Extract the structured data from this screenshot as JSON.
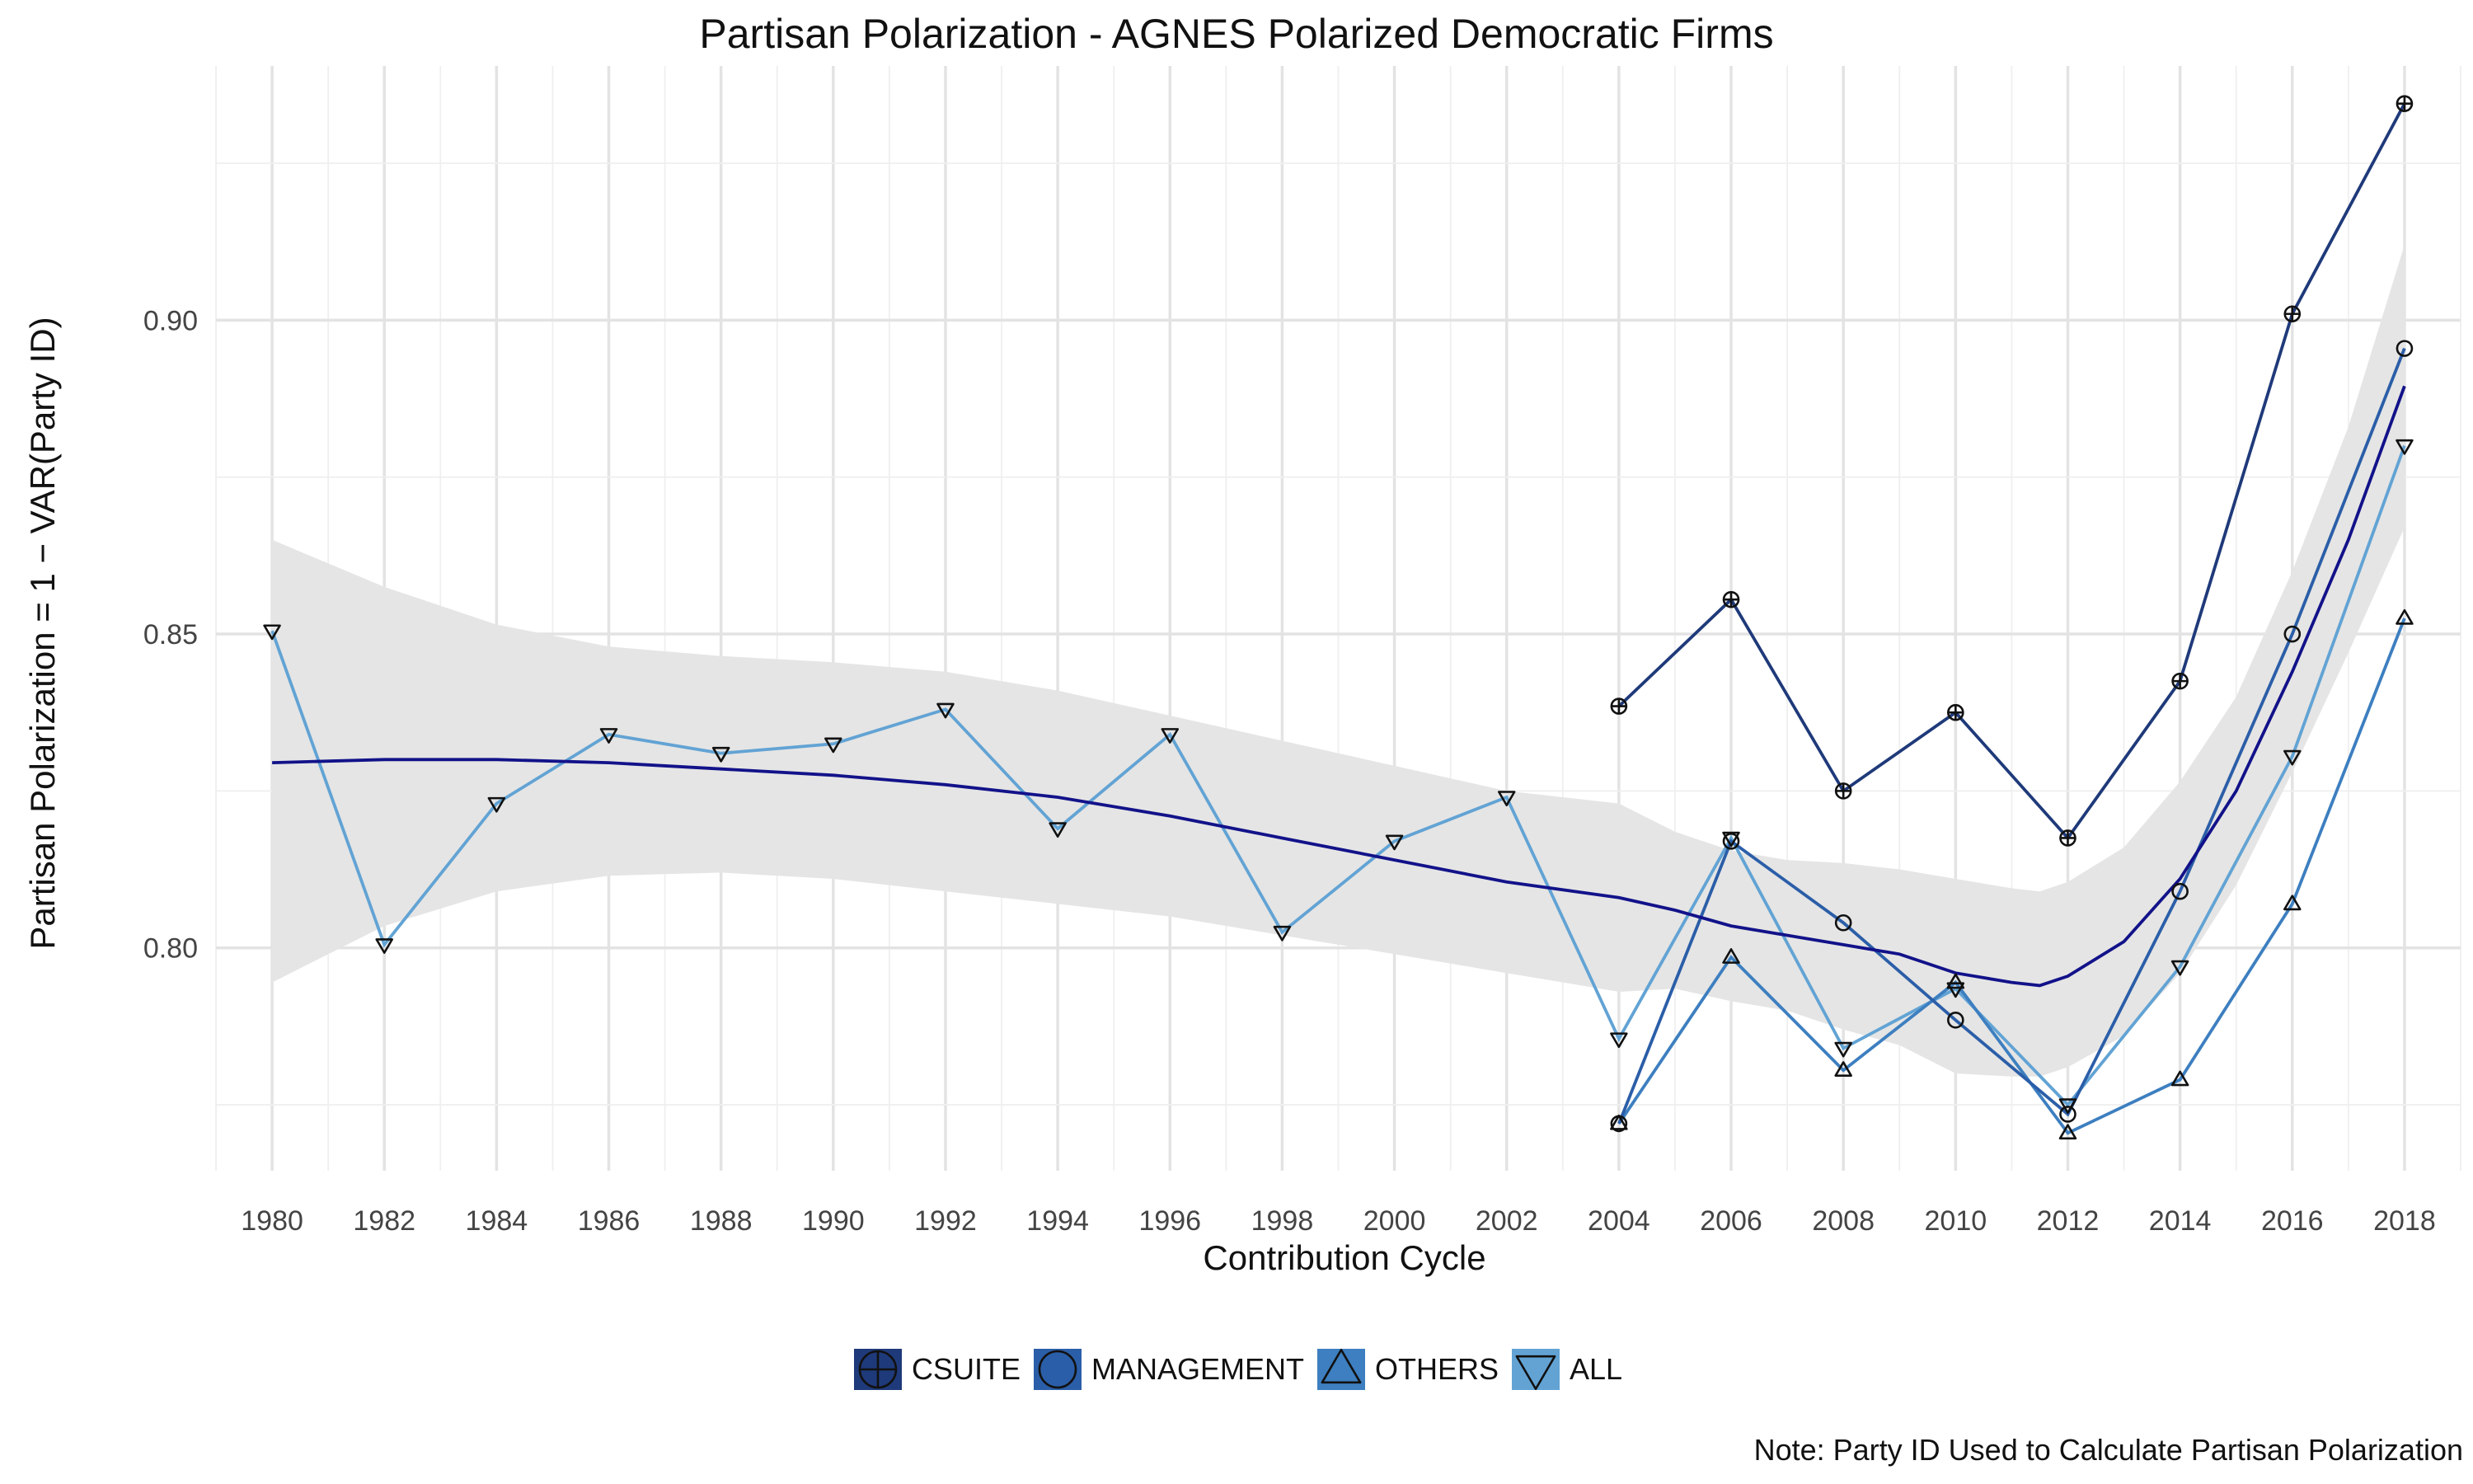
{
  "chart_data": {
    "type": "line",
    "title": "Partisan Polarization - AGNES Polarized Democratic Firms",
    "xlabel": "Contribution Cycle",
    "ylabel": "Partisan Polarization = 1 − VAR(Party ID)",
    "note": "Note: Party ID Used to Calculate Partisan Polarization",
    "xlim": [
      1979,
      2019
    ],
    "ylim": [
      0.7645,
      0.9405
    ],
    "x_ticks": [
      1980,
      1982,
      1984,
      1986,
      1988,
      1990,
      1992,
      1994,
      1996,
      1998,
      2000,
      2002,
      2004,
      2006,
      2008,
      2010,
      2012,
      2014,
      2016,
      2018
    ],
    "y_ticks": [
      0.8,
      0.85,
      0.9
    ],
    "y_tick_labels": [
      "0.80",
      "0.85",
      "0.90"
    ],
    "grid": true,
    "legend_position": "bottom",
    "series": [
      {
        "name": "CSUITE",
        "color": "#1f3a7a",
        "marker": "circle-plus",
        "x": [
          2004,
          2006,
          2008,
          2010,
          2012,
          2014,
          2016,
          2018
        ],
        "values": [
          0.8385,
          0.8555,
          0.825,
          0.8375,
          0.8175,
          0.8425,
          0.901,
          0.9345
        ]
      },
      {
        "name": "MANAGEMENT",
        "color": "#2b5ea8",
        "marker": "circle",
        "x": [
          2004,
          2006,
          2008,
          2010,
          2012,
          2014,
          2016,
          2018
        ],
        "values": [
          0.772,
          0.817,
          0.804,
          0.7885,
          0.7735,
          0.809,
          0.85,
          0.8955
        ]
      },
      {
        "name": "OTHERS",
        "color": "#3d7fc0",
        "marker": "triangle-up",
        "x": [
          2004,
          2006,
          2008,
          2010,
          2012,
          2014,
          2016,
          2018
        ],
        "values": [
          0.772,
          0.7985,
          0.7805,
          0.7945,
          0.7705,
          0.779,
          0.807,
          0.8525
        ]
      },
      {
        "name": "ALL",
        "color": "#62a3d4",
        "marker": "triangle-down",
        "x": [
          1980,
          1982,
          1984,
          1986,
          1988,
          1990,
          1992,
          1994,
          1996,
          1998,
          2000,
          2002,
          2004,
          2006,
          2008,
          2010,
          2012,
          2014,
          2016,
          2018
        ],
        "values": [
          0.8505,
          0.8005,
          0.823,
          0.834,
          0.831,
          0.8325,
          0.838,
          0.819,
          0.834,
          0.8025,
          0.817,
          0.824,
          0.7855,
          0.8175,
          0.784,
          0.7935,
          0.775,
          0.797,
          0.8305,
          0.88
        ]
      }
    ],
    "smooth": {
      "color": "#12128a",
      "band_color": "#e5e5e5",
      "x": [
        1980,
        1982,
        1984,
        1986,
        1988,
        1990,
        1992,
        1994,
        1996,
        1998,
        2000,
        2002,
        2004,
        2005,
        2006,
        2007,
        2008,
        2009,
        2010,
        2011,
        2011.5,
        2012,
        2013,
        2014,
        2015,
        2016,
        2017,
        2018
      ],
      "fit": [
        0.8295,
        0.83,
        0.83,
        0.8295,
        0.8285,
        0.8275,
        0.826,
        0.824,
        0.821,
        0.8175,
        0.814,
        0.8105,
        0.808,
        0.806,
        0.8035,
        0.802,
        0.8005,
        0.799,
        0.796,
        0.7945,
        0.794,
        0.7955,
        0.801,
        0.811,
        0.825,
        0.844,
        0.865,
        0.8895
      ],
      "upper": [
        0.865,
        0.8575,
        0.8515,
        0.848,
        0.8465,
        0.8455,
        0.844,
        0.841,
        0.837,
        0.833,
        0.829,
        0.825,
        0.823,
        0.8185,
        0.8155,
        0.814,
        0.8135,
        0.8125,
        0.811,
        0.8095,
        0.809,
        0.8105,
        0.816,
        0.8265,
        0.84,
        0.86,
        0.883,
        0.912
      ],
      "lower": [
        0.7945,
        0.8035,
        0.809,
        0.8115,
        0.812,
        0.811,
        0.809,
        0.807,
        0.805,
        0.802,
        0.799,
        0.796,
        0.793,
        0.7935,
        0.7915,
        0.79,
        0.787,
        0.7845,
        0.78,
        0.7795,
        0.7795,
        0.781,
        0.786,
        0.796,
        0.81,
        0.828,
        0.847,
        0.867
      ]
    }
  }
}
